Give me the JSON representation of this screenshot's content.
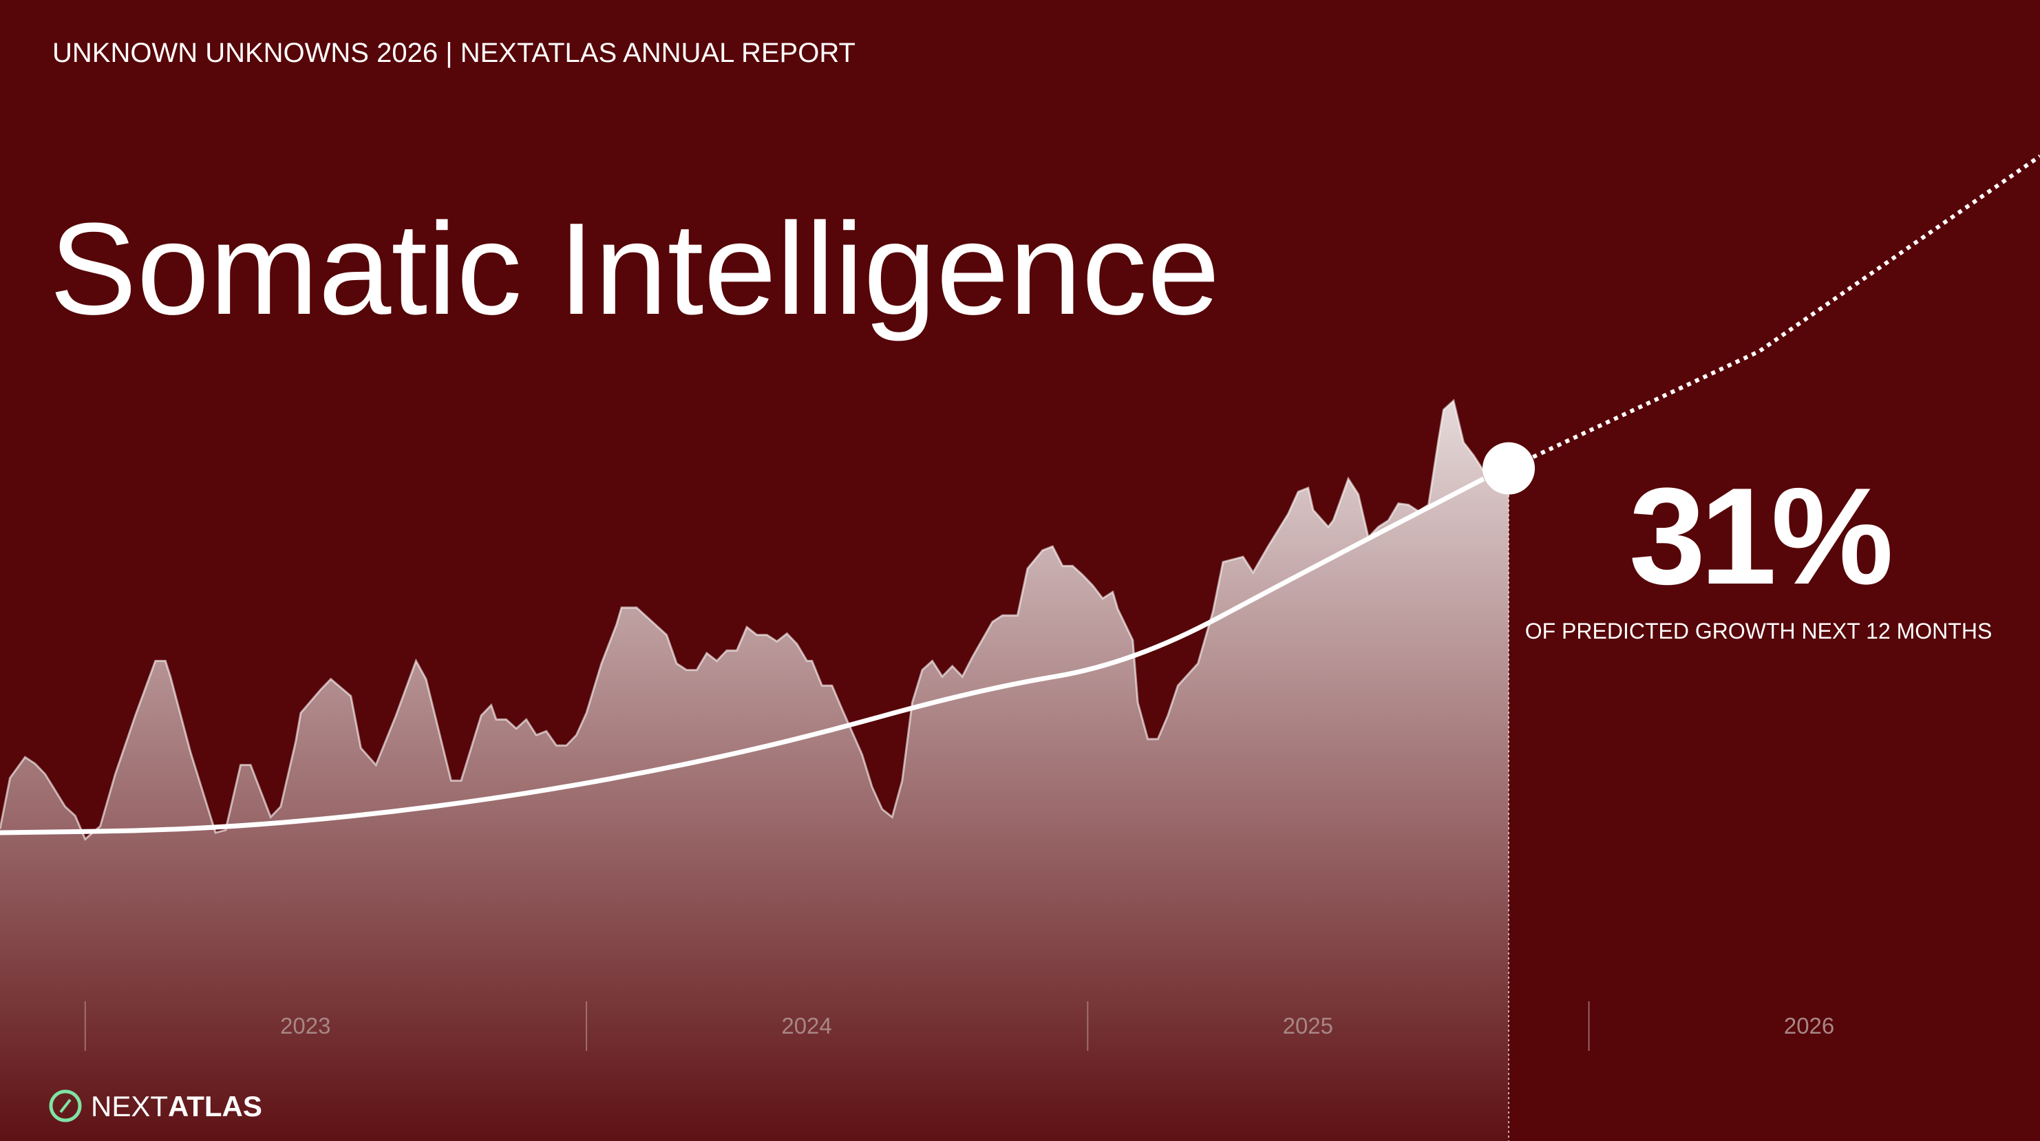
{
  "header": "UNKNOWN UNKNOWNS 2026 | NEXTATLAS ANNUAL REPORT",
  "logo": {
    "light": "NEXT",
    "bold": "ATLAS"
  },
  "chart_data": {
    "type": "area",
    "title": "Somatic Intelligence",
    "color": "#ffffff",
    "x": [
      2022.83,
      2022.85,
      2022.88,
      2022.9,
      2022.92,
      2022.96,
      2022.98,
      2023.0,
      2023.03,
      2023.06,
      2023.1,
      2023.14,
      2023.16,
      2023.17,
      2023.21,
      2023.26,
      2023.28,
      2023.31,
      2023.33,
      2023.37,
      2023.39,
      2023.42,
      2023.43,
      2023.47,
      2023.49,
      2023.53,
      2023.55,
      2023.58,
      2023.62,
      2023.66,
      2023.68,
      2023.73,
      2023.75,
      2023.79,
      2023.81,
      2023.82,
      2023.84,
      2023.86,
      2023.88,
      2023.9,
      2023.92,
      2023.94,
      2023.96,
      2023.98,
      2024.0,
      2024.03,
      2024.06,
      2024.07,
      2024.1,
      2024.16,
      2024.18,
      2024.2,
      2024.22,
      2024.24,
      2024.26,
      2024.28,
      2024.3,
      2024.32,
      2024.34,
      2024.36,
      2024.38,
      2024.4,
      2024.42,
      2024.44,
      2024.45,
      2024.47,
      2024.49,
      2024.51,
      2024.55,
      2024.57,
      2024.59,
      2024.61,
      2024.63,
      2024.65,
      2024.67,
      2024.69,
      2024.71,
      2024.73,
      2024.75,
      2024.77,
      2024.81,
      2024.83,
      2024.86,
      2024.88,
      2024.91,
      2024.93,
      2024.95,
      2024.97,
      2024.99,
      2025.01,
      2025.03,
      2025.05,
      2025.06,
      2025.09,
      2025.1,
      2025.12,
      2025.14,
      2025.16,
      2025.18,
      2025.22,
      2025.25,
      2025.27,
      2025.29,
      2025.31,
      2025.33,
      2025.36,
      2025.4,
      2025.42,
      2025.44,
      2025.45,
      2025.48,
      2025.49,
      2025.52,
      2025.54,
      2025.56,
      2025.58,
      2025.6,
      2025.62,
      2025.64,
      2025.66,
      2025.68,
      2025.7,
      2025.71,
      2025.73,
      2025.75,
      2025.77,
      2025.79,
      2025.82,
      2025.84
    ],
    "values": [
      240,
      279,
      295,
      290,
      282,
      257,
      250,
      232,
      242,
      282,
      327,
      369,
      369,
      357,
      299,
      237,
      239,
      289,
      289,
      249,
      257,
      307,
      329,
      347,
      355,
      342,
      302,
      289,
      327,
      369,
      355,
      277,
      277,
      327,
      335,
      324,
      324,
      317,
      324,
      312,
      315,
      304,
      304,
      312,
      329,
      367,
      397,
      410,
      410,
      389,
      367,
      362,
      362,
      375,
      369,
      377,
      377,
      395,
      389,
      389,
      384,
      390,
      382,
      369,
      369,
      350,
      350,
      332,
      297,
      272,
      255,
      249,
      277,
      337,
      362,
      369,
      357,
      365,
      357,
      372,
      399,
      404,
      404,
      440,
      454,
      457,
      442,
      442,
      435,
      427,
      417,
      422,
      409,
      385,
      337,
      309,
      309,
      327,
      350,
      367,
      407,
      445,
      447,
      449,
      437,
      457,
      482,
      499,
      502,
      485,
      472,
      477,
      509,
      497,
      464,
      472,
      477,
      490,
      489,
      484,
      489,
      539,
      562,
      569,
      537,
      527,
      515,
      505,
      504
    ],
    "trend": {
      "x": [
        2022.83,
        2023.22,
        2023.61,
        2024.0,
        2024.39,
        2024.78,
        2025.09,
        2025.43,
        2025.79
      ],
      "values": [
        237,
        239,
        252,
        274,
        305,
        347,
        367,
        437,
        509
      ]
    },
    "projection": {
      "x": [
        2025.84,
        2026.34,
        2026.9
      ],
      "values": [
        517,
        607,
        757
      ]
    },
    "xlim": [
      2022.83,
      2026.9
    ],
    "ylim": [
      0,
      877
    ],
    "xticks": [
      {
        "value": 2023,
        "label": "2023"
      },
      {
        "value": 2024,
        "label": "2024"
      },
      {
        "value": 2025,
        "label": "2025"
      },
      {
        "value": 2026,
        "label": "2026"
      }
    ],
    "annotation": {
      "value": 31,
      "value_label": "31%",
      "text": "OF PREDICTED GROWTH NEXT 12 MONTHS"
    }
  }
}
